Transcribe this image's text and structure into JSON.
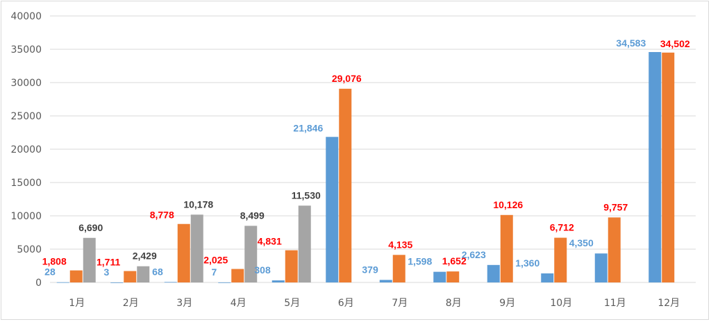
{
  "chart_data": {
    "type": "bar",
    "categories": [
      "1月",
      "2月",
      "3月",
      "4月",
      "5月",
      "6月",
      "7月",
      "8月",
      "9月",
      "10月",
      "11月",
      "12月"
    ],
    "ylim": [
      0,
      40000
    ],
    "yticks": [
      0,
      5000,
      10000,
      15000,
      20000,
      25000,
      30000,
      35000,
      40000
    ],
    "ytick_labels": [
      "0",
      "5000",
      "10000",
      "15000",
      "20000",
      "25000",
      "30000",
      "35000",
      "40000"
    ],
    "grid": true,
    "series": [
      {
        "color": "#5b9bd5",
        "label_color": "#5b9bd5",
        "values": [
          28,
          3,
          68,
          7,
          308,
          21846,
          379,
          1598,
          2623,
          1360,
          4350,
          34583
        ],
        "labels": [
          "28",
          "3",
          "68",
          "7",
          "308",
          "21,846",
          "379",
          "1,598",
          "2,623",
          "1,360",
          "4,350",
          "34,583"
        ]
      },
      {
        "color": "#ed7d31",
        "label_color": "#ff0000",
        "values": [
          1808,
          1711,
          8778,
          2025,
          4831,
          29076,
          4135,
          1652,
          10126,
          6712,
          9757,
          34502
        ],
        "labels": [
          "1,808",
          "1,711",
          "8,778",
          "2,025",
          "4,831",
          "29,076",
          "4,135",
          "1,652",
          "10,126",
          "6,712",
          "9,757",
          "34,502"
        ]
      },
      {
        "color": "#a5a5a5",
        "label_color": "#404040",
        "values": [
          6690,
          2429,
          10178,
          8499,
          11530,
          null,
          null,
          null,
          null,
          null,
          null,
          null
        ],
        "labels": [
          "6,690",
          "2,429",
          "10,178",
          "8,499",
          "11,530",
          "",
          "",
          "",
          "",
          "",
          "",
          ""
        ]
      }
    ]
  }
}
